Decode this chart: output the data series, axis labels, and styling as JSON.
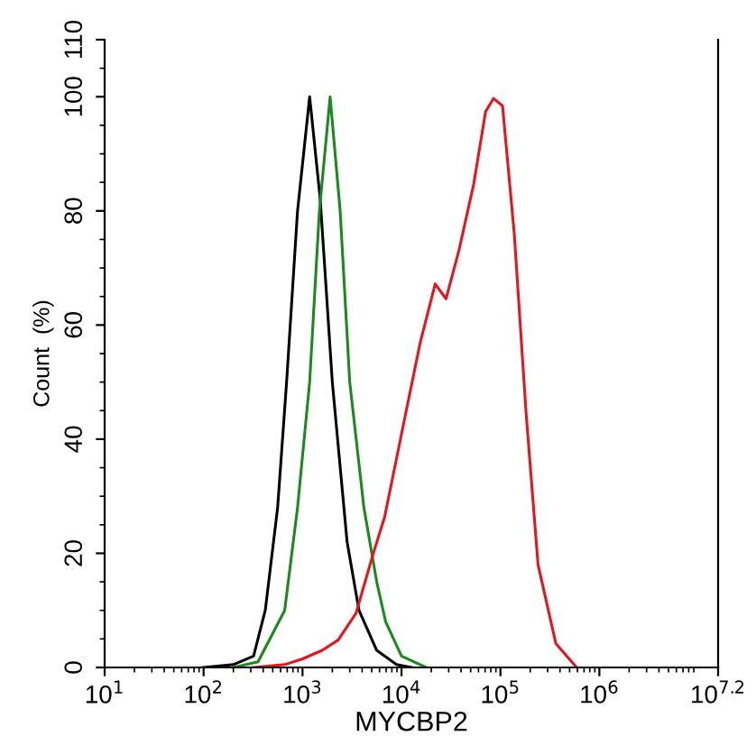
{
  "chart_data": {
    "type": "line",
    "xlabel": "MYCBP2",
    "ylabel": "Count  (%)",
    "log": "x",
    "grid": false,
    "xlim": [
      10,
      15848932
    ],
    "ylim": [
      0,
      110
    ],
    "xticks": [
      {
        "value": 10,
        "label": "10$^{1}$"
      },
      {
        "value": 100,
        "label": "10$^{2}$"
      },
      {
        "value": 1000,
        "label": "10$^{3}$"
      },
      {
        "value": 10000,
        "label": "10$^{4}$"
      },
      {
        "value": 100000,
        "label": "10$^{5}$"
      },
      {
        "value": 1000000,
        "label": "10$^{6}$"
      },
      {
        "value": 15848932,
        "label": "10$^{7.2}$"
      }
    ],
    "yticks": [
      0,
      20,
      40,
      60,
      80,
      100,
      110
    ],
    "series": [
      {
        "color": "#000000",
        "x": [
          100,
          200,
          320,
          420,
          560,
          690,
          890,
          1180,
          1510,
          2000,
          2820,
          3720,
          5620,
          8910,
          12600
        ],
        "values": [
          0,
          0.5,
          2,
          10,
          28,
          50,
          80,
          100,
          82,
          50,
          22,
          10,
          3,
          0.5,
          0
        ]
      },
      {
        "color": "#1a8a1a",
        "x": [
          200,
          355,
          660,
          890,
          1180,
          1480,
          1900,
          2400,
          3000,
          4170,
          5620,
          6920,
          10000,
          17800
        ],
        "values": [
          0,
          1,
          10,
          28,
          50,
          80,
          100,
          80,
          50,
          28,
          15,
          8,
          2,
          0
        ]
      },
      {
        "color": "#e8141c",
        "x": [
          316,
          660,
          1000,
          1580,
          2290,
          3470,
          5130,
          6760,
          11000,
          15500,
          21900,
          28200,
          38000,
          53700,
          70800,
          85100,
          105000,
          138000,
          182000,
          240000,
          363000,
          589000
        ],
        "values": [
          0,
          0.5,
          1.5,
          3,
          4.8,
          9.5,
          19.7,
          26.4,
          44.4,
          57,
          67.2,
          64.6,
          73,
          84.7,
          97.4,
          99.7,
          98.4,
          76,
          44.4,
          18,
          4.2,
          0
        ]
      }
    ]
  }
}
